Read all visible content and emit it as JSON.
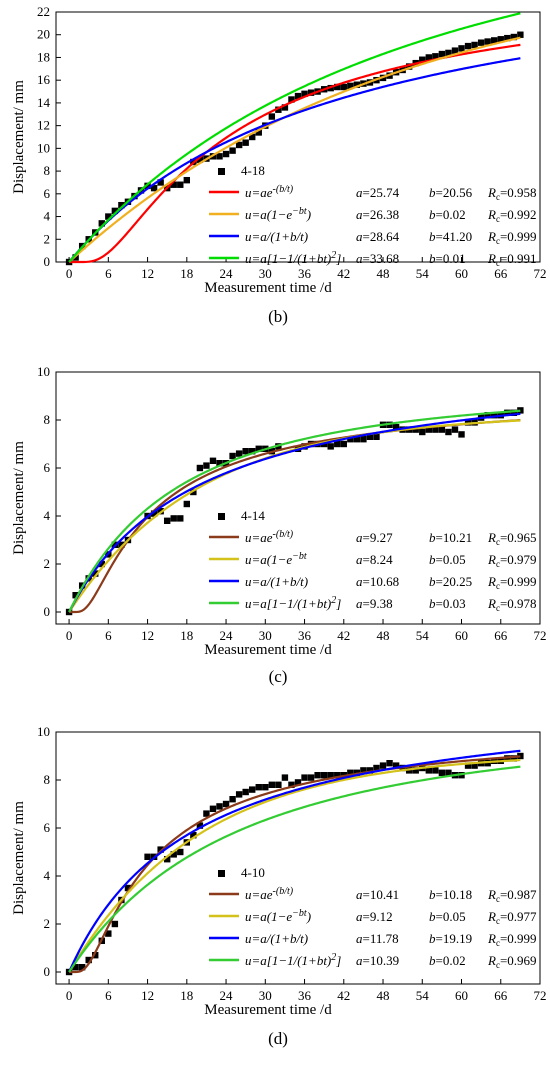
{
  "chart_data": [
    {
      "type": "scatter",
      "panel_label": "(b)",
      "xlabel": "Measurement time /d",
      "ylabel": "Displacement/ mm",
      "xlim": [
        -2,
        72
      ],
      "ylim": [
        0,
        22
      ],
      "xticks": [
        "0",
        "6",
        "12",
        "18",
        "24",
        "30",
        "36",
        "42",
        "48",
        "54",
        "60",
        "66",
        "72"
      ],
      "yticks": [
        "0",
        "2",
        "4",
        "6",
        "8",
        "10",
        "12",
        "14",
        "16",
        "18",
        "20",
        "22"
      ],
      "legend_placement": "bottom-right",
      "measured": {
        "name": "4-18",
        "x": [
          0,
          1,
          2,
          3,
          4,
          5,
          6,
          7,
          8,
          9,
          10,
          11,
          12,
          13,
          14,
          15,
          16,
          17,
          18,
          19,
          20,
          21,
          22,
          23,
          24,
          25,
          26,
          27,
          28,
          29,
          30,
          31,
          32,
          33,
          34,
          35,
          36,
          37,
          38,
          39,
          40,
          41,
          42,
          43,
          44,
          45,
          46,
          47,
          48,
          49,
          50,
          51,
          52,
          53,
          54,
          55,
          56,
          57,
          58,
          59,
          60,
          61,
          62,
          63,
          64,
          65,
          66,
          67,
          68,
          69
        ],
        "y": [
          0,
          0.4,
          1.4,
          2.0,
          2.6,
          3.4,
          4.0,
          4.5,
          5.0,
          5.3,
          5.8,
          6.3,
          6.7,
          6.5,
          7.0,
          6.5,
          6.8,
          6.8,
          7.2,
          8.8,
          9.0,
          9.1,
          9.3,
          9.3,
          9.5,
          9.8,
          10.3,
          10.5,
          11.0,
          11.4,
          12.0,
          12.8,
          13.4,
          13.6,
          14.3,
          14.6,
          14.8,
          14.9,
          15.0,
          15.2,
          15.3,
          15.4,
          15.4,
          15.5,
          15.6,
          15.7,
          15.8,
          16.0,
          16.2,
          16.4,
          16.7,
          16.9,
          17.2,
          17.5,
          17.8,
          18.0,
          18.1,
          18.3,
          18.4,
          18.6,
          18.8,
          19.0,
          19.1,
          19.3,
          19.4,
          19.5,
          19.6,
          19.7,
          19.8,
          20.0
        ]
      },
      "series": [
        {
          "model": "exp",
          "color": "#ff0000",
          "params": {
            "a": 25.74,
            "b": 20.56
          },
          "legend": {
            "formula": "u=ae^{-(b/t)}",
            "a": "25.74",
            "b": "20.56",
            "rc": "0.958"
          }
        },
        {
          "model": "expdecay",
          "color": "#f0b020",
          "params": {
            "a": 26.38,
            "b": 0.02
          },
          "legend": {
            "formula": "u=a(1−e^{−bt})",
            "a": "26.38",
            "b": "0.02",
            "rc": "0.992"
          }
        },
        {
          "model": "hyper",
          "color": "#0000ff",
          "params": {
            "a": 28.64,
            "b": 41.2
          },
          "legend": {
            "formula": "u=a/(1+b/t)",
            "a": "28.64",
            "b": "41.20",
            "rc": "0.999"
          }
        },
        {
          "model": "inv2",
          "color": "#00dd00",
          "params": {
            "a": 33.68,
            "b": 0.01
          },
          "legend": {
            "formula": "u=a[1−1/(1+bt)^2]",
            "a": "33.68",
            "b": "0.01",
            "rc": "0.991"
          }
        }
      ]
    },
    {
      "type": "scatter",
      "panel_label": "(c)",
      "xlabel": "Measurement time /d",
      "ylabel": "Displacement/ mm",
      "xlim": [
        -2,
        72
      ],
      "ylim": [
        -0.5,
        10
      ],
      "xticks": [
        "0",
        "6",
        "12",
        "18",
        "24",
        "30",
        "36",
        "42",
        "48",
        "54",
        "60",
        "66",
        "72"
      ],
      "yticks": [
        "0",
        "2",
        "4",
        "6",
        "8",
        "10"
      ],
      "legend_placement": "bottom-right",
      "measured": {
        "name": "4-14",
        "x": [
          0,
          1,
          2,
          3,
          4,
          5,
          6,
          7,
          8,
          9,
          12,
          13,
          14,
          15,
          16,
          17,
          18,
          19,
          20,
          21,
          22,
          23,
          24,
          25,
          26,
          27,
          28,
          29,
          30,
          31,
          32,
          35,
          36,
          37,
          38,
          39,
          40,
          41,
          42,
          43,
          44,
          45,
          46,
          47,
          48,
          49,
          50,
          51,
          52,
          53,
          54,
          55,
          56,
          57,
          58,
          59,
          60,
          61,
          62,
          63,
          64,
          65,
          66,
          67,
          68,
          69
        ],
        "y": [
          0,
          0.7,
          1.1,
          1.4,
          1.6,
          2.0,
          2.4,
          2.8,
          2.8,
          3.0,
          4.0,
          4.1,
          4.2,
          3.8,
          3.9,
          3.9,
          4.5,
          5.0,
          6.0,
          6.1,
          6.3,
          6.2,
          6.2,
          6.5,
          6.6,
          6.7,
          6.7,
          6.8,
          6.8,
          6.7,
          6.9,
          6.8,
          6.9,
          7.0,
          7.0,
          7.0,
          6.9,
          7.0,
          7.0,
          7.2,
          7.2,
          7.2,
          7.3,
          7.3,
          7.8,
          7.8,
          7.7,
          7.6,
          7.6,
          7.6,
          7.5,
          7.6,
          7.6,
          7.6,
          7.5,
          7.6,
          7.4,
          7.9,
          7.9,
          8.1,
          8.2,
          8.2,
          8.2,
          8.3,
          8.3,
          8.4
        ]
      },
      "series": [
        {
          "model": "exp",
          "color": "#8b3a1a",
          "params": {
            "a": 9.27,
            "b": 10.21
          },
          "legend": {
            "formula": "u=ae^{-(b/t)}",
            "a": "9.27",
            "b": "10.21",
            "rc": "0.965"
          }
        },
        {
          "model": "expdecay",
          "color": "#d4c21a",
          "params": {
            "a": 8.24,
            "b": 0.05
          },
          "legend": {
            "formula": "u=a(1−e^{−bt}",
            "a": "8.24",
            "b": "0.05",
            "rc": "0.979"
          }
        },
        {
          "model": "hyper",
          "color": "#0000ff",
          "params": {
            "a": 10.68,
            "b": 20.25
          },
          "legend": {
            "formula": "u=a/(1+b/t)",
            "a": "10.68",
            "b": "20.25",
            "rc": "0.999"
          }
        },
        {
          "model": "inv2",
          "color": "#33cc33",
          "params": {
            "a": 9.38,
            "b": 0.03
          },
          "legend": {
            "formula": "u=a[1−1/(1+bt)^2]",
            "a": "9.38",
            "b": "0.03",
            "rc": "0.978"
          }
        }
      ]
    },
    {
      "type": "scatter",
      "panel_label": "(d)",
      "xlabel": "Measurement time /d",
      "ylabel": "Displacement/ mm",
      "xlim": [
        -2,
        72
      ],
      "ylim": [
        -0.5,
        10
      ],
      "xticks": [
        "0",
        "6",
        "12",
        "18",
        "24",
        "30",
        "36",
        "42",
        "48",
        "54",
        "60",
        "66",
        "72"
      ],
      "yticks": [
        "0",
        "2",
        "4",
        "6",
        "8",
        "10"
      ],
      "legend_placement": "bottom-right",
      "measured": {
        "name": "4-10",
        "x": [
          0,
          1,
          2,
          3,
          4,
          5,
          6,
          7,
          8,
          9,
          12,
          13,
          14,
          15,
          16,
          17,
          18,
          19,
          20,
          21,
          22,
          23,
          24,
          25,
          26,
          27,
          28,
          29,
          30,
          31,
          32,
          33,
          34,
          35,
          36,
          37,
          38,
          39,
          40,
          41,
          42,
          43,
          44,
          45,
          46,
          47,
          48,
          49,
          50,
          51,
          52,
          53,
          54,
          55,
          56,
          57,
          58,
          59,
          60,
          61,
          62,
          63,
          64,
          65,
          66,
          67,
          68,
          69
        ],
        "y": [
          0,
          0.2,
          0.2,
          0.5,
          0.7,
          1.3,
          1.6,
          2.0,
          3.0,
          3.5,
          4.8,
          4.8,
          5.1,
          4.7,
          4.9,
          5.0,
          5.4,
          5.7,
          6.1,
          6.6,
          6.8,
          6.9,
          7.0,
          7.2,
          7.4,
          7.5,
          7.6,
          7.7,
          7.7,
          7.8,
          7.8,
          8.1,
          7.8,
          7.9,
          8.1,
          8.1,
          8.2,
          8.2,
          8.2,
          8.2,
          8.2,
          8.3,
          8.3,
          8.4,
          8.4,
          8.5,
          8.6,
          8.7,
          8.6,
          8.5,
          8.4,
          8.4,
          8.5,
          8.4,
          8.4,
          8.3,
          8.3,
          8.2,
          8.2,
          8.6,
          8.6,
          8.7,
          8.7,
          8.8,
          8.8,
          8.9,
          8.9,
          9.0
        ]
      },
      "series": [
        {
          "model": "exp",
          "color": "#8b3a1a",
          "params": {
            "a": 10.41,
            "b": 10.18
          },
          "legend": {
            "formula": "u=ae^{-(b/t)}",
            "a": "10.41",
            "b": "10.18",
            "rc": "0.987"
          }
        },
        {
          "model": "expdecay",
          "color": "#d4c21a",
          "params": {
            "a": 9.12,
            "b": 0.05
          },
          "legend": {
            "formula": "u=a(1−e^{−bt})",
            "a": "9.12",
            "b": "0.05",
            "rc": "0.977"
          }
        },
        {
          "model": "hyper",
          "color": "#0000ff",
          "params": {
            "a": 11.78,
            "b": 19.19
          },
          "legend": {
            "formula": "u=a/(1+b/t)",
            "a": "11.78",
            "b": "19.19",
            "rc": "0.999"
          }
        },
        {
          "model": "inv2",
          "color": "#33cc33",
          "params": {
            "a": 10.39,
            "b": 0.02
          },
          "legend": {
            "formula": "u=a[1−1/(1+bt)^2]",
            "a": "10.39",
            "b": "0.02",
            "rc": "0.969"
          }
        }
      ]
    }
  ]
}
